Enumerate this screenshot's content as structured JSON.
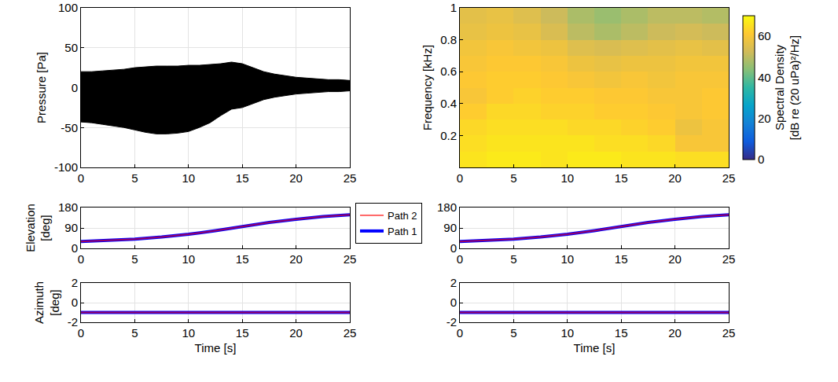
{
  "chart_data": [
    {
      "type": "band",
      "ylabel": "Pressure [Pa]",
      "color": "#000000",
      "grid": true,
      "x": [
        0,
        1,
        2,
        3,
        4,
        5,
        6,
        7,
        8,
        9,
        10,
        11,
        12,
        13,
        14,
        15,
        16,
        17,
        18,
        19,
        20,
        21,
        22,
        23,
        24,
        25
      ],
      "upper": [
        20,
        20,
        21,
        22,
        23,
        25,
        26,
        27,
        27,
        27,
        28,
        28,
        29,
        30,
        32,
        30,
        25,
        20,
        17,
        15,
        13,
        12,
        11,
        10,
        10,
        9
      ],
      "lower": [
        -43,
        -44,
        -46,
        -48,
        -50,
        -53,
        -56,
        -58,
        -58,
        -57,
        -55,
        -50,
        -44,
        -35,
        -27,
        -25,
        -20,
        -15,
        -12,
        -10,
        -8,
        -7,
        -6,
        -5,
        -5,
        -4
      ],
      "xlim": [
        0,
        25
      ],
      "xticks": [
        0,
        5,
        10,
        15,
        20,
        25
      ],
      "ylim": [
        -100,
        100
      ],
      "yticks": [
        -100,
        -50,
        0,
        50,
        100
      ]
    },
    {
      "type": "heatmap",
      "ylabel": "Frequency [kHz]",
      "grid": false,
      "colorbar_title": "Spectral Density [dB re (20 uPa)²/Hz]",
      "x_edges": [
        0,
        2.5,
        5,
        7.5,
        10,
        12.5,
        15,
        17.5,
        20,
        22.5,
        25
      ],
      "y_edges": [
        0,
        0.1,
        0.2,
        0.3,
        0.4,
        0.5,
        0.6,
        0.7,
        0.8,
        0.9,
        1
      ],
      "cells": [
        [
          66,
          67,
          67,
          66,
          67,
          67,
          66,
          66,
          65,
          65
        ],
        [
          65,
          66,
          66,
          66,
          66,
          65,
          65,
          64,
          60,
          60
        ],
        [
          64,
          65,
          65,
          65,
          64,
          64,
          63,
          62,
          58,
          60
        ],
        [
          62,
          64,
          64,
          63,
          63,
          62,
          62,
          61,
          60,
          61
        ],
        [
          60,
          62,
          63,
          62,
          62,
          61,
          61,
          60,
          60,
          61
        ],
        [
          61,
          62,
          62,
          61,
          60,
          59,
          60,
          59,
          60,
          60
        ],
        [
          60,
          61,
          61,
          60,
          58,
          57,
          58,
          58,
          59,
          59
        ],
        [
          59,
          60,
          59,
          58,
          55,
          54,
          55,
          56,
          57,
          56
        ],
        [
          57,
          58,
          57,
          54,
          50,
          48,
          50,
          52,
          53,
          52
        ],
        [
          56,
          57,
          55,
          52,
          48,
          46,
          48,
          50,
          50,
          49
        ]
      ],
      "zlim": [
        0,
        70
      ],
      "zticks": [
        0,
        20,
        40,
        60
      ],
      "xlim": [
        0,
        25
      ],
      "xticks": [
        0,
        5,
        10,
        15,
        20,
        25
      ],
      "ylim": [
        0,
        1
      ],
      "yticks": [
        0.2,
        0.4,
        0.6,
        0.8,
        1
      ]
    },
    {
      "type": "line",
      "ylabel": "Elevation [deg]",
      "grid": true,
      "legend": "center",
      "x": [
        0,
        2.5,
        5,
        7.5,
        10,
        12.5,
        15,
        17.5,
        20,
        22.5,
        25
      ],
      "series": [
        {
          "name": "Path 1",
          "color": "#0000ff",
          "values": [
            30,
            35,
            41,
            50,
            62,
            78,
            97,
            114,
            128,
            140,
            148
          ]
        },
        {
          "name": "Path 2",
          "color": "#ff0000",
          "values": [
            30,
            35,
            41,
            50,
            62,
            78,
            97,
            114,
            128,
            140,
            148
          ]
        }
      ],
      "xlim": [
        0,
        25
      ],
      "xticks": [
        0,
        5,
        10,
        15,
        20,
        25
      ],
      "ylim": [
        0,
        180
      ],
      "yticks": [
        0,
        90,
        180
      ]
    },
    {
      "type": "line",
      "grid": true,
      "x": [
        0,
        2.5,
        5,
        7.5,
        10,
        12.5,
        15,
        17.5,
        20,
        22.5,
        25
      ],
      "series": [
        {
          "name": "Path 1",
          "color": "#0000ff",
          "values": [
            30,
            35,
            41,
            50,
            62,
            78,
            97,
            114,
            128,
            140,
            148
          ]
        },
        {
          "name": "Path 2",
          "color": "#ff0000",
          "values": [
            30,
            35,
            41,
            50,
            62,
            78,
            97,
            114,
            128,
            140,
            148
          ]
        }
      ],
      "xlim": [
        0,
        25
      ],
      "xticks": [
        0,
        5,
        10,
        15,
        20,
        25
      ],
      "ylim": [
        0,
        180
      ],
      "yticks": [
        0,
        90,
        180
      ]
    },
    {
      "type": "line",
      "ylabel": "Azimuth [deg]",
      "xlabel": "Time [s]",
      "grid": true,
      "x": [
        0,
        2.5,
        5,
        7.5,
        10,
        12.5,
        15,
        17.5,
        20,
        22.5,
        25
      ],
      "series": [
        {
          "name": "Path 1",
          "color": "#0000ff",
          "values": [
            -1,
            -1,
            -1,
            -1,
            -1,
            -1,
            -1,
            -1,
            -1,
            -1,
            -1
          ]
        },
        {
          "name": "Path 2",
          "color": "#ff0000",
          "values": [
            -1,
            -1,
            -1,
            -1,
            -1,
            -1,
            -1,
            -1,
            -1,
            -1,
            -1
          ]
        }
      ],
      "xlim": [
        0,
        25
      ],
      "xticks": [
        0,
        5,
        10,
        15,
        20,
        25
      ],
      "ylim": [
        -2,
        2
      ],
      "yticks": [
        -2,
        0,
        2
      ]
    },
    {
      "type": "line",
      "xlabel": "Time [s]",
      "grid": true,
      "x": [
        0,
        2.5,
        5,
        7.5,
        10,
        12.5,
        15,
        17.5,
        20,
        22.5,
        25
      ],
      "series": [
        {
          "name": "Path 1",
          "color": "#0000ff",
          "values": [
            -1,
            -1,
            -1,
            -1,
            -1,
            -1,
            -1,
            -1,
            -1,
            -1,
            -1
          ]
        },
        {
          "name": "Path 2",
          "color": "#ff0000",
          "values": [
            -1,
            -1,
            -1,
            -1,
            -1,
            -1,
            -1,
            -1,
            -1,
            -1,
            -1
          ]
        }
      ],
      "xlim": [
        0,
        25
      ],
      "xticks": [
        0,
        5,
        10,
        15,
        20,
        25
      ],
      "ylim": [
        -2,
        2
      ],
      "yticks": [
        -2,
        0,
        2
      ]
    }
  ]
}
